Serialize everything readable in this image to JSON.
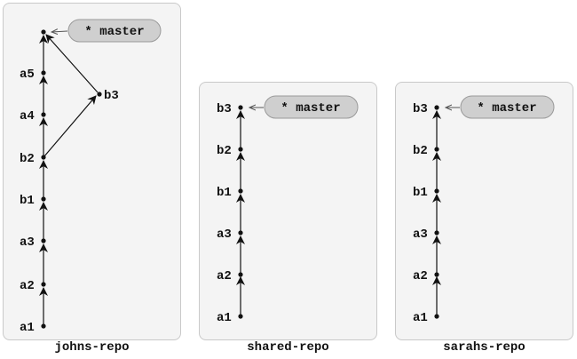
{
  "repos": [
    {
      "name": "johns-repo",
      "commits": [
        "a1",
        "a2",
        "a3",
        "b1",
        "b2",
        "a4",
        "a5",
        "",
        "b3"
      ],
      "branch_label": "* master"
    },
    {
      "name": "shared-repo",
      "commits": [
        "a1",
        "a2",
        "a3",
        "b1",
        "b2",
        "b3"
      ],
      "branch_label": "* master"
    },
    {
      "name": "sarahs-repo",
      "commits": [
        "a1",
        "a2",
        "a3",
        "b1",
        "b2",
        "b3"
      ],
      "branch_label": "* master"
    }
  ]
}
